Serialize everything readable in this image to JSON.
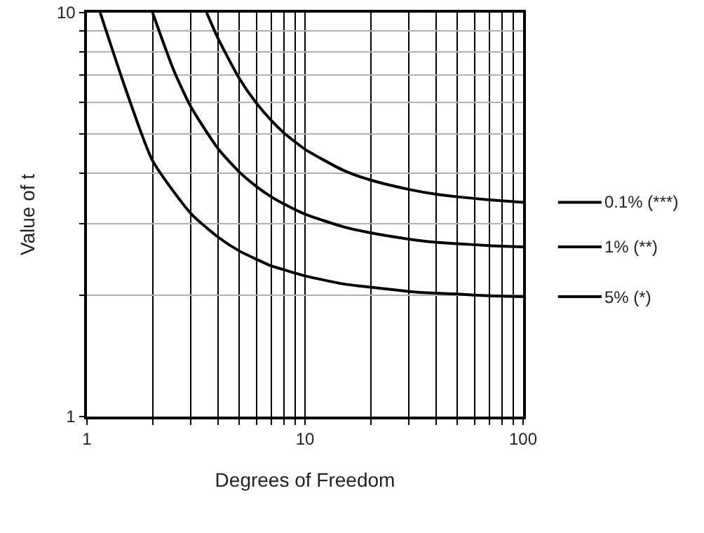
{
  "chart_data": {
    "type": "line",
    "xlabel": "Degrees of Freedom",
    "ylabel": "Value of t",
    "log": "xy",
    "grid": true,
    "legend": "right",
    "marker": "none",
    "line_style": "solid",
    "xlim": [
      1,
      100
    ],
    "ylim": [
      1,
      10
    ],
    "xticks": [
      1,
      {
        "value": 2,
        "label": null
      },
      {
        "value": 3,
        "label": null
      },
      {
        "value": 4,
        "label": null
      },
      {
        "value": 5,
        "label": null
      },
      {
        "value": 6,
        "label": null
      },
      {
        "value": 7,
        "label": null
      },
      {
        "value": 8,
        "label": null
      },
      {
        "value": 9,
        "label": null
      },
      10,
      {
        "value": 20,
        "label": null
      },
      {
        "value": 30,
        "label": null
      },
      {
        "value": 40,
        "label": null
      },
      {
        "value": 50,
        "label": null
      },
      {
        "value": 60,
        "label": null
      },
      {
        "value": 70,
        "label": null
      },
      {
        "value": 80,
        "label": null
      },
      {
        "value": 90,
        "label": null
      },
      100
    ],
    "yticks": [
      1,
      {
        "value": 2,
        "label": null
      },
      {
        "value": 3,
        "label": null
      },
      {
        "value": 4,
        "label": null
      },
      {
        "value": 5,
        "label": null
      },
      {
        "value": 6,
        "label": null
      },
      {
        "value": 7,
        "label": null
      },
      {
        "value": 8,
        "label": null
      },
      {
        "value": 9,
        "label": null
      },
      10
    ],
    "series": [
      {
        "name": "0.1% (***)",
        "color": "#000000",
        "x": [
          3.54,
          4,
          5,
          6,
          7,
          8,
          10,
          15,
          20,
          30,
          40,
          50,
          70,
          100
        ],
        "values": [
          10,
          8.61,
          6.87,
          5.96,
          5.41,
          5.04,
          4.59,
          4.07,
          3.85,
          3.65,
          3.55,
          3.5,
          3.44,
          3.39
        ]
      },
      {
        "name": "1% (**)",
        "color": "#000000",
        "x": [
          2,
          2.5,
          3,
          4,
          5,
          6,
          7,
          8,
          10,
          15,
          20,
          30,
          40,
          50,
          70,
          100
        ],
        "values": [
          10,
          7.2,
          5.84,
          4.6,
          4.03,
          3.71,
          3.5,
          3.36,
          3.17,
          2.95,
          2.85,
          2.75,
          2.7,
          2.68,
          2.65,
          2.63
        ]
      },
      {
        "name": "5% (*)",
        "color": "#000000",
        "x": [
          1.15,
          1.5,
          2,
          3,
          4,
          5,
          6,
          7,
          8,
          10,
          15,
          20,
          30,
          40,
          50,
          70,
          100
        ],
        "values": [
          10,
          6.5,
          4.3,
          3.18,
          2.78,
          2.57,
          2.45,
          2.36,
          2.31,
          2.23,
          2.13,
          2.09,
          2.04,
          2.02,
          2.01,
          1.99,
          1.98
        ]
      }
    ]
  }
}
